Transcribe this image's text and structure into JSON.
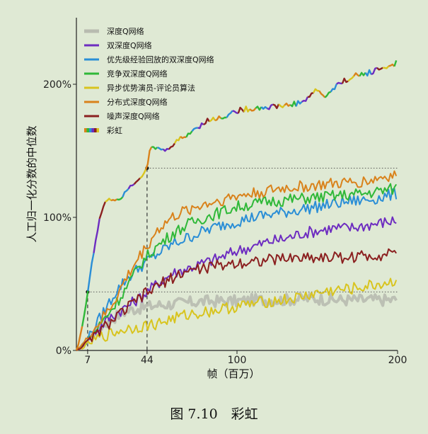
{
  "caption": "图 7.10　彩虹",
  "chart_data": {
    "type": "line",
    "xlabel": "帧（百万）",
    "ylabel": "人工归一化分数的中位数",
    "xlim": [
      0,
      200
    ],
    "ylim": [
      0,
      250
    ],
    "x_ticks": [
      7,
      44,
      100,
      200
    ],
    "y_ticks": [
      0,
      100,
      200
    ],
    "y_tick_labels": [
      "0%",
      "100%",
      "200%"
    ],
    "grid": false,
    "legend_position": "top-left",
    "reference_lines": [
      {
        "x": 7,
        "y": 44
      },
      {
        "x": 44,
        "y": 137
      }
    ],
    "series": [
      {
        "name": "深度Q网络",
        "color": "#b8bbb0",
        "width": 4,
        "x": [
          0,
          5,
          10,
          15,
          20,
          25,
          30,
          35,
          40,
          45,
          50,
          60,
          70,
          80,
          90,
          100,
          110,
          120,
          130,
          140,
          150,
          160,
          170,
          180,
          190,
          200
        ],
        "y": [
          0,
          5,
          12,
          18,
          22,
          26,
          29,
          31,
          32,
          33,
          34,
          35,
          36,
          37,
          37,
          37,
          38,
          38,
          38,
          39,
          39,
          38,
          38,
          38,
          38,
          38
        ]
      },
      {
        "name": "双深度Q网络",
        "color": "#6d2cc0",
        "width": 2,
        "x": [
          0,
          5,
          10,
          15,
          20,
          25,
          30,
          35,
          40,
          45,
          50,
          60,
          70,
          80,
          90,
          100,
          110,
          120,
          130,
          140,
          150,
          160,
          170,
          180,
          190,
          200
        ],
        "y": [
          0,
          5,
          12,
          18,
          24,
          28,
          32,
          36,
          40,
          45,
          50,
          58,
          62,
          66,
          70,
          75,
          78,
          82,
          84,
          88,
          90,
          92,
          92,
          94,
          96,
          98
        ]
      },
      {
        "name": "优先级经验回放的双深度Q网络",
        "color": "#2a8ed6",
        "width": 2,
        "x": [
          0,
          5,
          10,
          15,
          20,
          25,
          30,
          35,
          40,
          45,
          50,
          60,
          70,
          80,
          90,
          100,
          110,
          120,
          130,
          140,
          150,
          160,
          170,
          180,
          190,
          200
        ],
        "y": [
          0,
          6,
          15,
          25,
          35,
          45,
          52,
          58,
          63,
          68,
          72,
          80,
          85,
          90,
          94,
          97,
          100,
          102,
          104,
          106,
          108,
          110,
          112,
          113,
          115,
          118
        ]
      },
      {
        "name": "竞争双深度Q网络",
        "color": "#2fb838",
        "width": 2,
        "x": [
          0,
          5,
          10,
          15,
          20,
          25,
          30,
          35,
          40,
          45,
          50,
          60,
          70,
          80,
          90,
          100,
          110,
          120,
          130,
          140,
          150,
          160,
          170,
          180,
          190,
          200
        ],
        "y": [
          0,
          5,
          12,
          20,
          28,
          36,
          45,
          55,
          65,
          72,
          78,
          88,
          95,
          100,
          104,
          108,
          110,
          112,
          113,
          114,
          115,
          116,
          117,
          118,
          120,
          122
        ]
      },
      {
        "name": "异步优势演员-评论员算法",
        "color": "#d8c41e",
        "width": 2,
        "x": [
          0,
          5,
          10,
          15,
          20,
          25,
          30,
          35,
          40,
          45,
          50,
          60,
          70,
          80,
          90,
          100,
          110,
          120,
          130,
          140,
          150,
          160,
          170,
          180,
          190,
          200
        ],
        "y": [
          0,
          3,
          7,
          10,
          12,
          14,
          16,
          17,
          18,
          19,
          20,
          24,
          27,
          29,
          31,
          33,
          35,
          37,
          38,
          40,
          43,
          45,
          46,
          48,
          50,
          52
        ]
      },
      {
        "name": "分布式深度Q网络",
        "color": "#d9821b",
        "width": 2,
        "x": [
          0,
          5,
          10,
          15,
          20,
          25,
          30,
          35,
          40,
          45,
          50,
          60,
          70,
          80,
          90,
          100,
          110,
          120,
          130,
          140,
          150,
          160,
          170,
          180,
          190,
          200
        ],
        "y": [
          0,
          6,
          14,
          22,
          30,
          40,
          52,
          62,
          72,
          80,
          90,
          100,
          106,
          110,
          113,
          116,
          118,
          120,
          122,
          123,
          124,
          125,
          126,
          127,
          130,
          132
        ]
      },
      {
        "name": "噪声深度Q网络",
        "color": "#8b2020",
        "width": 2,
        "x": [
          0,
          5,
          10,
          15,
          20,
          25,
          30,
          35,
          40,
          45,
          50,
          60,
          70,
          80,
          90,
          100,
          110,
          120,
          130,
          140,
          150,
          160,
          170,
          180,
          190,
          200
        ],
        "y": [
          0,
          4,
          10,
          15,
          20,
          25,
          30,
          35,
          40,
          44,
          48,
          55,
          60,
          62,
          64,
          66,
          67,
          68,
          69,
          70,
          70,
          70,
          70,
          71,
          72,
          76
        ]
      },
      {
        "name": "彩虹",
        "color": "rainbow",
        "width": 2,
        "x": [
          0,
          2,
          4,
          6,
          7,
          8,
          10,
          12,
          14,
          16,
          18,
          20,
          24,
          28,
          32,
          36,
          40,
          42,
          44,
          46,
          50,
          56,
          60,
          70,
          80,
          90,
          100,
          110,
          120,
          130,
          140,
          150,
          155,
          160,
          170,
          180,
          190,
          200
        ],
        "y": [
          0,
          8,
          22,
          34,
          44,
          52,
          68,
          82,
          96,
          106,
          112,
          114,
          113,
          115,
          122,
          126,
          130,
          134,
          137,
          152,
          152,
          150,
          155,
          163,
          172,
          175,
          180,
          182,
          183,
          184,
          186,
          196,
          190,
          197,
          205,
          208,
          212,
          216
        ]
      }
    ]
  }
}
